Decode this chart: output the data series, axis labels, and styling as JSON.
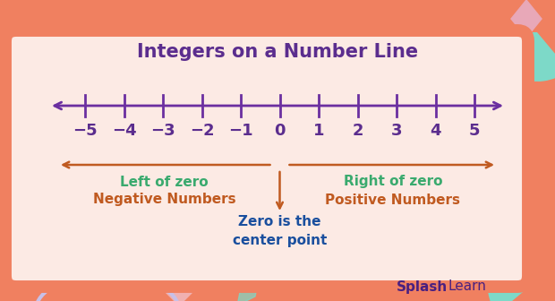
{
  "title": "Integers on a Number Line",
  "title_color": "#5b2d8e",
  "title_fontsize": 15,
  "numbers": [
    -5,
    -4,
    -3,
    -2,
    -1,
    0,
    1,
    2,
    3,
    4,
    5
  ],
  "number_line_color": "#6b2fa0",
  "label_color": "#5b2d8e",
  "bg_outer": "#f08060",
  "bg_inner": "#fceae4",
  "arrow_color": "#c05a20",
  "left_label1": "Left of zero",
  "left_label2": "Negative Numbers",
  "right_label1": "Right of zero",
  "right_label2": "Positive Numbers",
  "left_label_color": "#3aaa6e",
  "right_label_color": "#3aaa6e",
  "neg_label_color": "#c05a20",
  "pos_label_color": "#c05a20",
  "center_label1": "Zero is the",
  "center_label2": "center point",
  "center_color": "#1a4f9e",
  "teal_color": "#7dd9c8",
  "pink_diamond_color": "#f0b8b8",
  "teal_diamond_color": "#7dd9c8",
  "splash_color": "#4a2080",
  "learn_color": "#4a2080"
}
